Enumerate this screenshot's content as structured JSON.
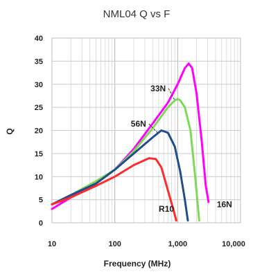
{
  "chart_data": {
    "type": "line",
    "title": "NML04 Q vs F",
    "xlabel": "Frequency (MHz)",
    "ylabel": "Q",
    "x_scale": "log",
    "xlim": [
      10,
      10000
    ],
    "ylim": [
      0,
      40
    ],
    "x_ticks": [
      "10",
      "100",
      "1,000",
      "10,000"
    ],
    "x_tick_values": [
      10,
      100,
      1000,
      10000
    ],
    "y_ticks": [
      "0",
      "5",
      "10",
      "15",
      "20",
      "25",
      "30",
      "35",
      "40"
    ],
    "grid": true,
    "series": [
      {
        "name": "16N",
        "color": "#ff00ff",
        "points": [
          [
            10,
            3.0
          ],
          [
            20,
            5.5
          ],
          [
            50,
            8.5
          ],
          [
            100,
            11.5
          ],
          [
            200,
            16.0
          ],
          [
            400,
            21.5
          ],
          [
            700,
            26.0
          ],
          [
            1000,
            30.0
          ],
          [
            1300,
            33.5
          ],
          [
            1500,
            34.5
          ],
          [
            1700,
            33.5
          ],
          [
            2000,
            28.0
          ],
          [
            2400,
            18.0
          ],
          [
            2800,
            8.0
          ],
          [
            3100,
            4.5
          ]
        ]
      },
      {
        "name": "33N",
        "color": "#7ed957",
        "points": [
          [
            10,
            4.0
          ],
          [
            20,
            6.0
          ],
          [
            50,
            9.0
          ],
          [
            100,
            11.5
          ],
          [
            200,
            15.5
          ],
          [
            400,
            20.5
          ],
          [
            700,
            25.0
          ],
          [
            900,
            26.5
          ],
          [
            1000,
            26.8
          ],
          [
            1100,
            26.5
          ],
          [
            1300,
            25.0
          ],
          [
            1600,
            20.0
          ],
          [
            1900,
            10.0
          ],
          [
            2200,
            0.5
          ]
        ]
      },
      {
        "name": "56N",
        "color": "#1f4e8c",
        "points": [
          [
            10,
            4.0
          ],
          [
            20,
            6.0
          ],
          [
            50,
            8.5
          ],
          [
            100,
            11.5
          ],
          [
            200,
            15.0
          ],
          [
            400,
            18.5
          ],
          [
            550,
            20.0
          ],
          [
            700,
            19.5
          ],
          [
            900,
            16.5
          ],
          [
            1100,
            11.0
          ],
          [
            1300,
            5.0
          ],
          [
            1450,
            0.5
          ]
        ]
      },
      {
        "name": "R10",
        "color": "#ff2a2a",
        "points": [
          [
            10,
            4.0
          ],
          [
            20,
            5.5
          ],
          [
            50,
            8.0
          ],
          [
            100,
            10.0
          ],
          [
            200,
            12.5
          ],
          [
            350,
            14.0
          ],
          [
            450,
            13.8
          ],
          [
            550,
            12.0
          ],
          [
            700,
            7.0
          ],
          [
            850,
            3.0
          ],
          [
            950,
            0.5
          ]
        ]
      }
    ],
    "series_labels": [
      {
        "text": "33N",
        "series": "33N",
        "x": 370,
        "y": 28.5,
        "leader_to": [
          900,
          26.5
        ]
      },
      {
        "text": "56N",
        "series": "56N",
        "x": 180,
        "y": 20.8,
        "leader_to": [
          480,
          19.5
        ]
      },
      {
        "text": "R10",
        "series": "R10",
        "x": 500,
        "y": 2.4
      },
      {
        "text": "16N",
        "series": "16N",
        "x": 4200,
        "y": 3.4
      }
    ]
  }
}
